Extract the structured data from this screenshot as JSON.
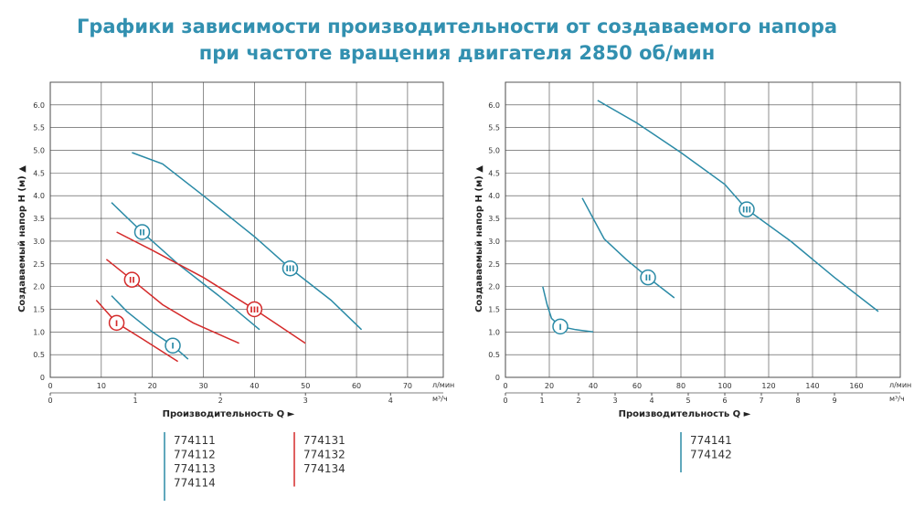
{
  "title": [
    "Графики зависимости производительности от создаваемого напора",
    "при частоте вращения двигателя 2850 об/мин"
  ],
  "chart_data": [
    {
      "type": "line",
      "ylabel": "Создаваемый напор Н (м) ▲",
      "xlabel": "Производительность Q ►",
      "x_unit": "л/мин",
      "x2_unit": "м³/ч",
      "xlim": [
        0,
        77
      ],
      "xticks": [
        0,
        10,
        20,
        30,
        40,
        50,
        60,
        70
      ],
      "x2lim": [
        0,
        4.62
      ],
      "x2ticks": [
        0,
        1,
        2,
        3,
        4
      ],
      "ylim": [
        0,
        6.5
      ],
      "yticks": [
        0,
        0.5,
        {
          "value": 1,
          "label": "1.0"
        },
        1.5,
        {
          "value": 2,
          "label": "2.0"
        },
        2.5,
        {
          "value": 3,
          "label": "3.0"
        },
        3.5,
        {
          "value": 4,
          "label": "4.0"
        },
        4.5,
        {
          "value": 5,
          "label": "5.0"
        },
        5.5,
        {
          "value": 6,
          "label": "6.0"
        }
      ],
      "grid": true,
      "series": [
        {
          "name": "III",
          "color": "#2a8aa6",
          "x": [
            16,
            22,
            30,
            40,
            47,
            55,
            61
          ],
          "values": [
            4.95,
            4.7,
            4.0,
            3.1,
            2.4,
            1.7,
            1.05
          ]
        },
        {
          "name": "II",
          "color": "#2a8aa6",
          "x": [
            12,
            18,
            25,
            33,
            41
          ],
          "values": [
            3.85,
            3.2,
            2.5,
            1.8,
            1.05
          ]
        },
        {
          "name": "I",
          "color": "#2a8aa6",
          "x": [
            12,
            15,
            20,
            24,
            27
          ],
          "values": [
            1.8,
            1.45,
            1.0,
            0.7,
            0.4
          ]
        },
        {
          "name": "III",
          "color": "#d42a2a",
          "x": [
            13,
            20,
            30,
            40,
            50
          ],
          "values": [
            3.2,
            2.8,
            2.2,
            1.5,
            0.75
          ]
        },
        {
          "name": "II",
          "color": "#d42a2a",
          "x": [
            11,
            16,
            22,
            28,
            37
          ],
          "values": [
            2.6,
            2.15,
            1.6,
            1.2,
            0.75
          ]
        },
        {
          "name": "I",
          "color": "#d42a2a",
          "x": [
            9,
            13,
            18,
            25
          ],
          "values": [
            1.7,
            1.2,
            0.85,
            0.35
          ]
        }
      ],
      "legend": [
        {
          "color": "#2a8aa6",
          "items": [
            "774111",
            "774112",
            "774113",
            "774114"
          ]
        },
        {
          "color": "#d42a2a",
          "items": [
            "774131",
            "774132",
            "774134"
          ]
        }
      ]
    },
    {
      "type": "line",
      "ylabel": "Создаваемый напор Н (м) ▲",
      "xlabel": "Производительность Q ►",
      "x_unit": "л/мин",
      "x2_unit": "м³/ч",
      "xlim": [
        0,
        180
      ],
      "xticks": [
        0,
        20,
        40,
        60,
        80,
        100,
        120,
        140,
        160
      ],
      "x2lim": [
        0,
        10.8
      ],
      "x2ticks": [
        0,
        1,
        2,
        3,
        4,
        5,
        6,
        7,
        8,
        9
      ],
      "ylim": [
        0,
        6.5
      ],
      "yticks": [
        0,
        0.5,
        {
          "value": 1,
          "label": "1.0"
        },
        1.5,
        {
          "value": 2,
          "label": "2.0"
        },
        2.5,
        {
          "value": 3,
          "label": "3.0"
        },
        3.5,
        {
          "value": 4,
          "label": "4.0"
        },
        4.5,
        {
          "value": 5,
          "label": "5.0"
        },
        5.5,
        {
          "value": 6,
          "label": "6.0"
        }
      ],
      "grid": true,
      "series": [
        {
          "name": "III",
          "color": "#2a8aa6",
          "x": [
            42,
            60,
            80,
            100,
            110,
            130,
            150,
            170
          ],
          "values": [
            6.1,
            5.6,
            4.95,
            4.25,
            3.7,
            3.0,
            2.2,
            1.45
          ]
        },
        {
          "name": "II",
          "color": "#2a8aa6",
          "x": [
            35,
            40,
            45,
            55,
            65,
            77
          ],
          "values": [
            3.95,
            3.5,
            3.05,
            2.6,
            2.2,
            1.75
          ]
        },
        {
          "name": "I",
          "color": "#2a8aa6",
          "x": [
            17,
            19,
            21,
            25,
            32,
            40
          ],
          "values": [
            2.0,
            1.6,
            1.3,
            1.12,
            1.05,
            1.0
          ]
        }
      ],
      "legend": [
        {
          "color": "#2a8aa6",
          "items": [
            "774141",
            "774142"
          ]
        }
      ]
    }
  ]
}
